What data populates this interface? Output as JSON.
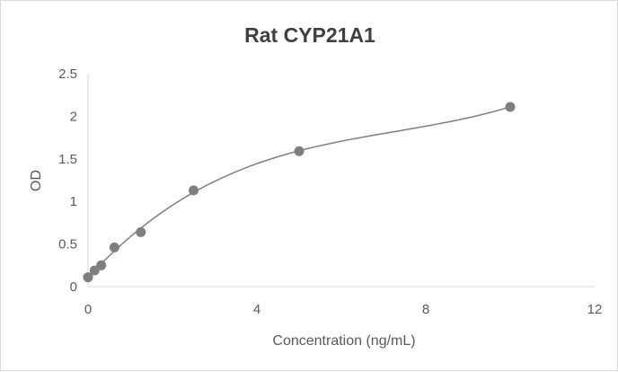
{
  "chart_data": {
    "type": "scatter",
    "title": "Rat CYP21A1",
    "xlabel": "Concentration (ng/mL)",
    "ylabel": "OD",
    "xlim": [
      0,
      12
    ],
    "ylim": [
      0,
      2.5
    ],
    "xticks": [
      0,
      4,
      8,
      12
    ],
    "yticks": [
      0,
      0.5,
      1,
      1.5,
      2,
      2.5
    ],
    "grid": false,
    "trendline": "polynomial",
    "colors": {
      "points": "#7f7f7f",
      "line": "#7f7f7f",
      "axis": "#d9d9d9",
      "title": "#404040"
    },
    "points": [
      {
        "x": 0,
        "y": 0.11
      },
      {
        "x": 0.156,
        "y": 0.19
      },
      {
        "x": 0.3125,
        "y": 0.25
      },
      {
        "x": 0.625,
        "y": 0.46
      },
      {
        "x": 1.25,
        "y": 0.64
      },
      {
        "x": 2.5,
        "y": 1.13
      },
      {
        "x": 5,
        "y": 1.59
      },
      {
        "x": 10,
        "y": 2.11
      }
    ]
  }
}
